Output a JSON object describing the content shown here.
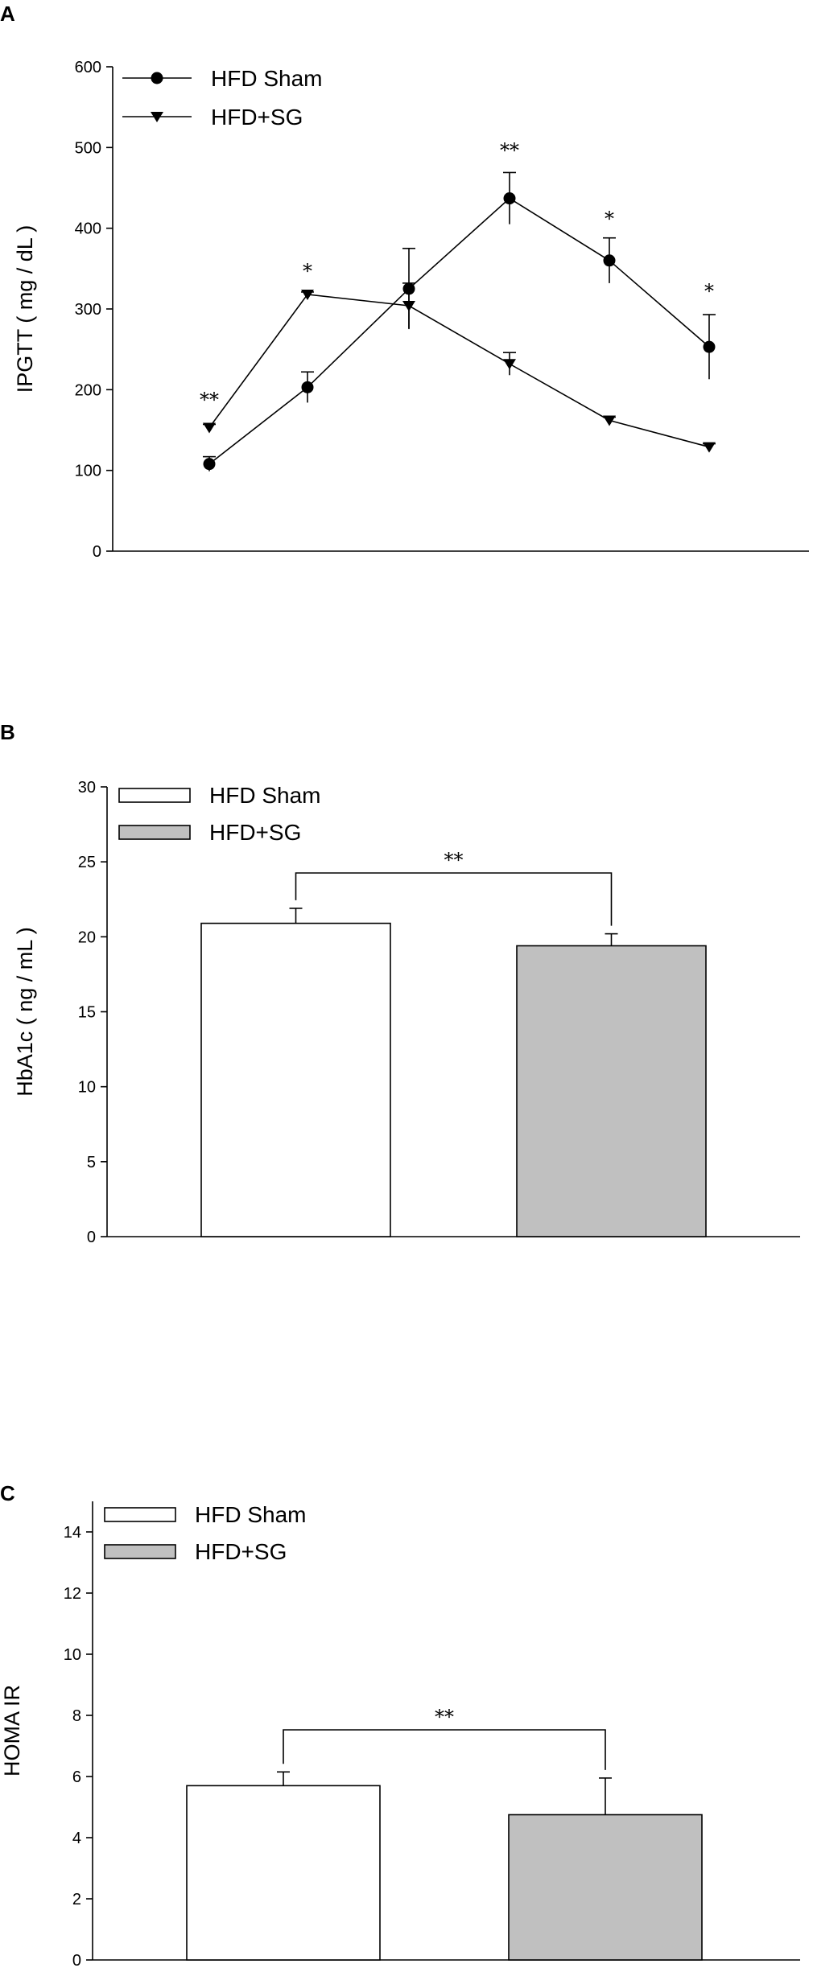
{
  "chart_data": [
    {
      "panel": "A",
      "type": "line",
      "ylabel": "IPGTT ( mg / dL )",
      "ylim": [
        0,
        600
      ],
      "yticks": [
        "0",
        "100",
        "200",
        "300",
        "400",
        "500",
        "600"
      ],
      "x_positions": 6,
      "series": [
        {
          "name": "HFD Sham",
          "marker": "circle",
          "values": [
            108,
            203,
            325,
            437,
            360,
            253
          ],
          "errors": [
            9,
            19,
            50,
            32,
            28,
            40
          ]
        },
        {
          "name": "HFD+SG",
          "marker": "triangle-down",
          "values": [
            153,
            318,
            304,
            232,
            162,
            129
          ],
          "errors": [
            4,
            3,
            28,
            14,
            4,
            4
          ]
        }
      ],
      "annotations": [
        "**",
        "*",
        "**",
        "*",
        "*"
      ],
      "legend": "top-left",
      "grid": false
    },
    {
      "panel": "B",
      "type": "bar",
      "ylabel": "HbA1c ( ng / mL )",
      "ylim": [
        0,
        30
      ],
      "yticks": [
        "0",
        "5",
        "10",
        "15",
        "20",
        "25",
        "30"
      ],
      "categories": [
        "HFD Sham",
        "HFD+SG"
      ],
      "values": [
        20.9,
        19.4
      ],
      "errors": [
        1.0,
        0.8
      ],
      "colors": [
        "#ffffff",
        "#c0c0c0"
      ],
      "significance": "**",
      "legend": "top-left",
      "grid": false
    },
    {
      "panel": "C",
      "type": "bar",
      "ylabel": "HOMA IR",
      "ylim": [
        0,
        15
      ],
      "yticks": [
        "0",
        "2",
        "4",
        "6",
        "8",
        "10",
        "12",
        "14"
      ],
      "categories": [
        "HFD Sham",
        "HFD+SG"
      ],
      "values": [
        5.7,
        4.75
      ],
      "errors": [
        0.45,
        1.2
      ],
      "colors": [
        "#ffffff",
        "#c0c0c0"
      ],
      "significance": "**",
      "legend": "top-left",
      "grid": false
    }
  ]
}
